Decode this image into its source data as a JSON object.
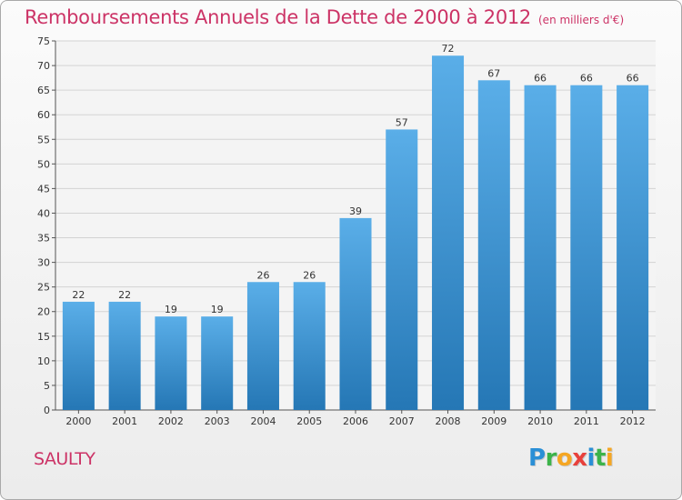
{
  "header": {
    "title": "Remboursements Annuels de la Dette de 2000 à 2012",
    "subtitle": "(en milliers d'€)"
  },
  "footer": {
    "commune": "SAULTY",
    "logo_letters": [
      {
        "char": "P",
        "color": "#2a8fd6"
      },
      {
        "char": "r",
        "color": "#3cb34a"
      },
      {
        "char": "o",
        "color": "#f5a623"
      },
      {
        "char": "x",
        "color": "#e8413c"
      },
      {
        "char": "i",
        "color": "#2a8fd6"
      },
      {
        "char": "t",
        "color": "#3cb34a"
      },
      {
        "char": "i",
        "color": "#f5a623"
      }
    ]
  },
  "colors": {
    "title": "#cc3366",
    "bar_top": "#5aaee8",
    "bar_bottom": "#2577b5",
    "grid": "#d3d3d3",
    "axis_text": "#333333"
  },
  "chart_data": {
    "type": "bar",
    "title": "Remboursements Annuels de la Dette de 2000 à 2012",
    "categories": [
      "2000",
      "2001",
      "2002",
      "2003",
      "2004",
      "2005",
      "2006",
      "2007",
      "2008",
      "2009",
      "2010",
      "2011",
      "2012"
    ],
    "values": [
      22,
      22,
      19,
      19,
      26,
      26,
      39,
      57,
      72,
      67,
      66,
      66,
      66
    ],
    "xlabel": "",
    "ylabel": "",
    "ylim": [
      0,
      75
    ],
    "yticks": [
      0,
      5,
      10,
      15,
      20,
      25,
      30,
      35,
      40,
      45,
      50,
      55,
      60,
      65,
      70,
      75
    ],
    "grid": true,
    "data_labels": true
  }
}
